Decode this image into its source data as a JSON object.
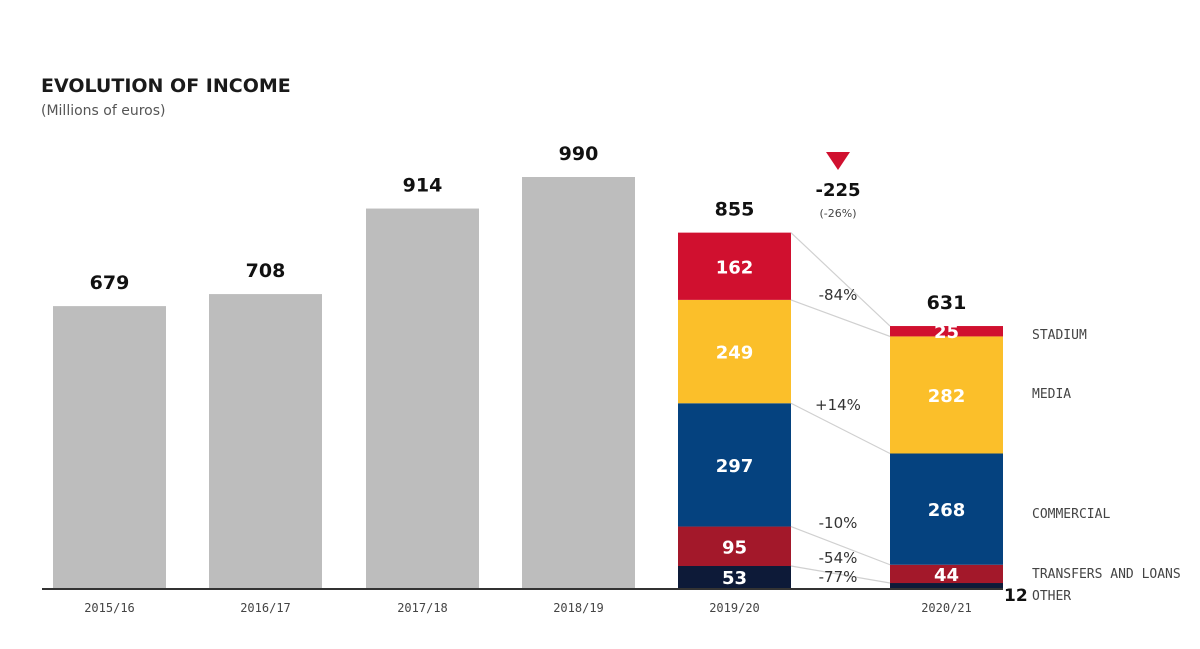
{
  "chart_data": {
    "type": "bar",
    "title": "EVOLUTION OF INCOME",
    "subtitle": "(Millions of euros)",
    "xlabel": "",
    "ylabel": "Millions of euros",
    "ylim": [
      0,
      990
    ],
    "grid": false,
    "categories": [
      "2015/16",
      "2016/17",
      "2017/18",
      "2018/19",
      "2019/20",
      "2020/21"
    ],
    "totals": [
      679,
      708,
      914,
      990,
      855,
      631
    ],
    "total_labels": [
      "679",
      "708",
      "914",
      "990",
      "855",
      "631"
    ],
    "stacked_breakdown": {
      "categories": [
        "2019/20",
        "2020/21"
      ],
      "series": [
        {
          "name": "OTHER",
          "color": "#0d1a38",
          "values": [
            53,
            12
          ],
          "change": "-77%"
        },
        {
          "name": "TRANSFERS AND LOANS",
          "color": "#a3182a",
          "values": [
            95,
            44
          ],
          "change": "-54%"
        },
        {
          "name": "COMMERCIAL",
          "color": "#05427f",
          "values": [
            297,
            268
          ],
          "change": "-10%"
        },
        {
          "name": "MEDIA",
          "color": "#fbbf2a",
          "values": [
            249,
            282
          ],
          "change": "+14%"
        },
        {
          "name": "STADIUM",
          "color": "#d0102f",
          "values": [
            162,
            25
          ],
          "change": "-84%"
        }
      ]
    },
    "annotation": {
      "change": "-225",
      "change_pct": "(-26%)",
      "arrow_color": "#d0102f"
    },
    "legend_placement": "right",
    "colors": {
      "historical_bar": "#bdbdbd",
      "axis": "#333333"
    }
  }
}
